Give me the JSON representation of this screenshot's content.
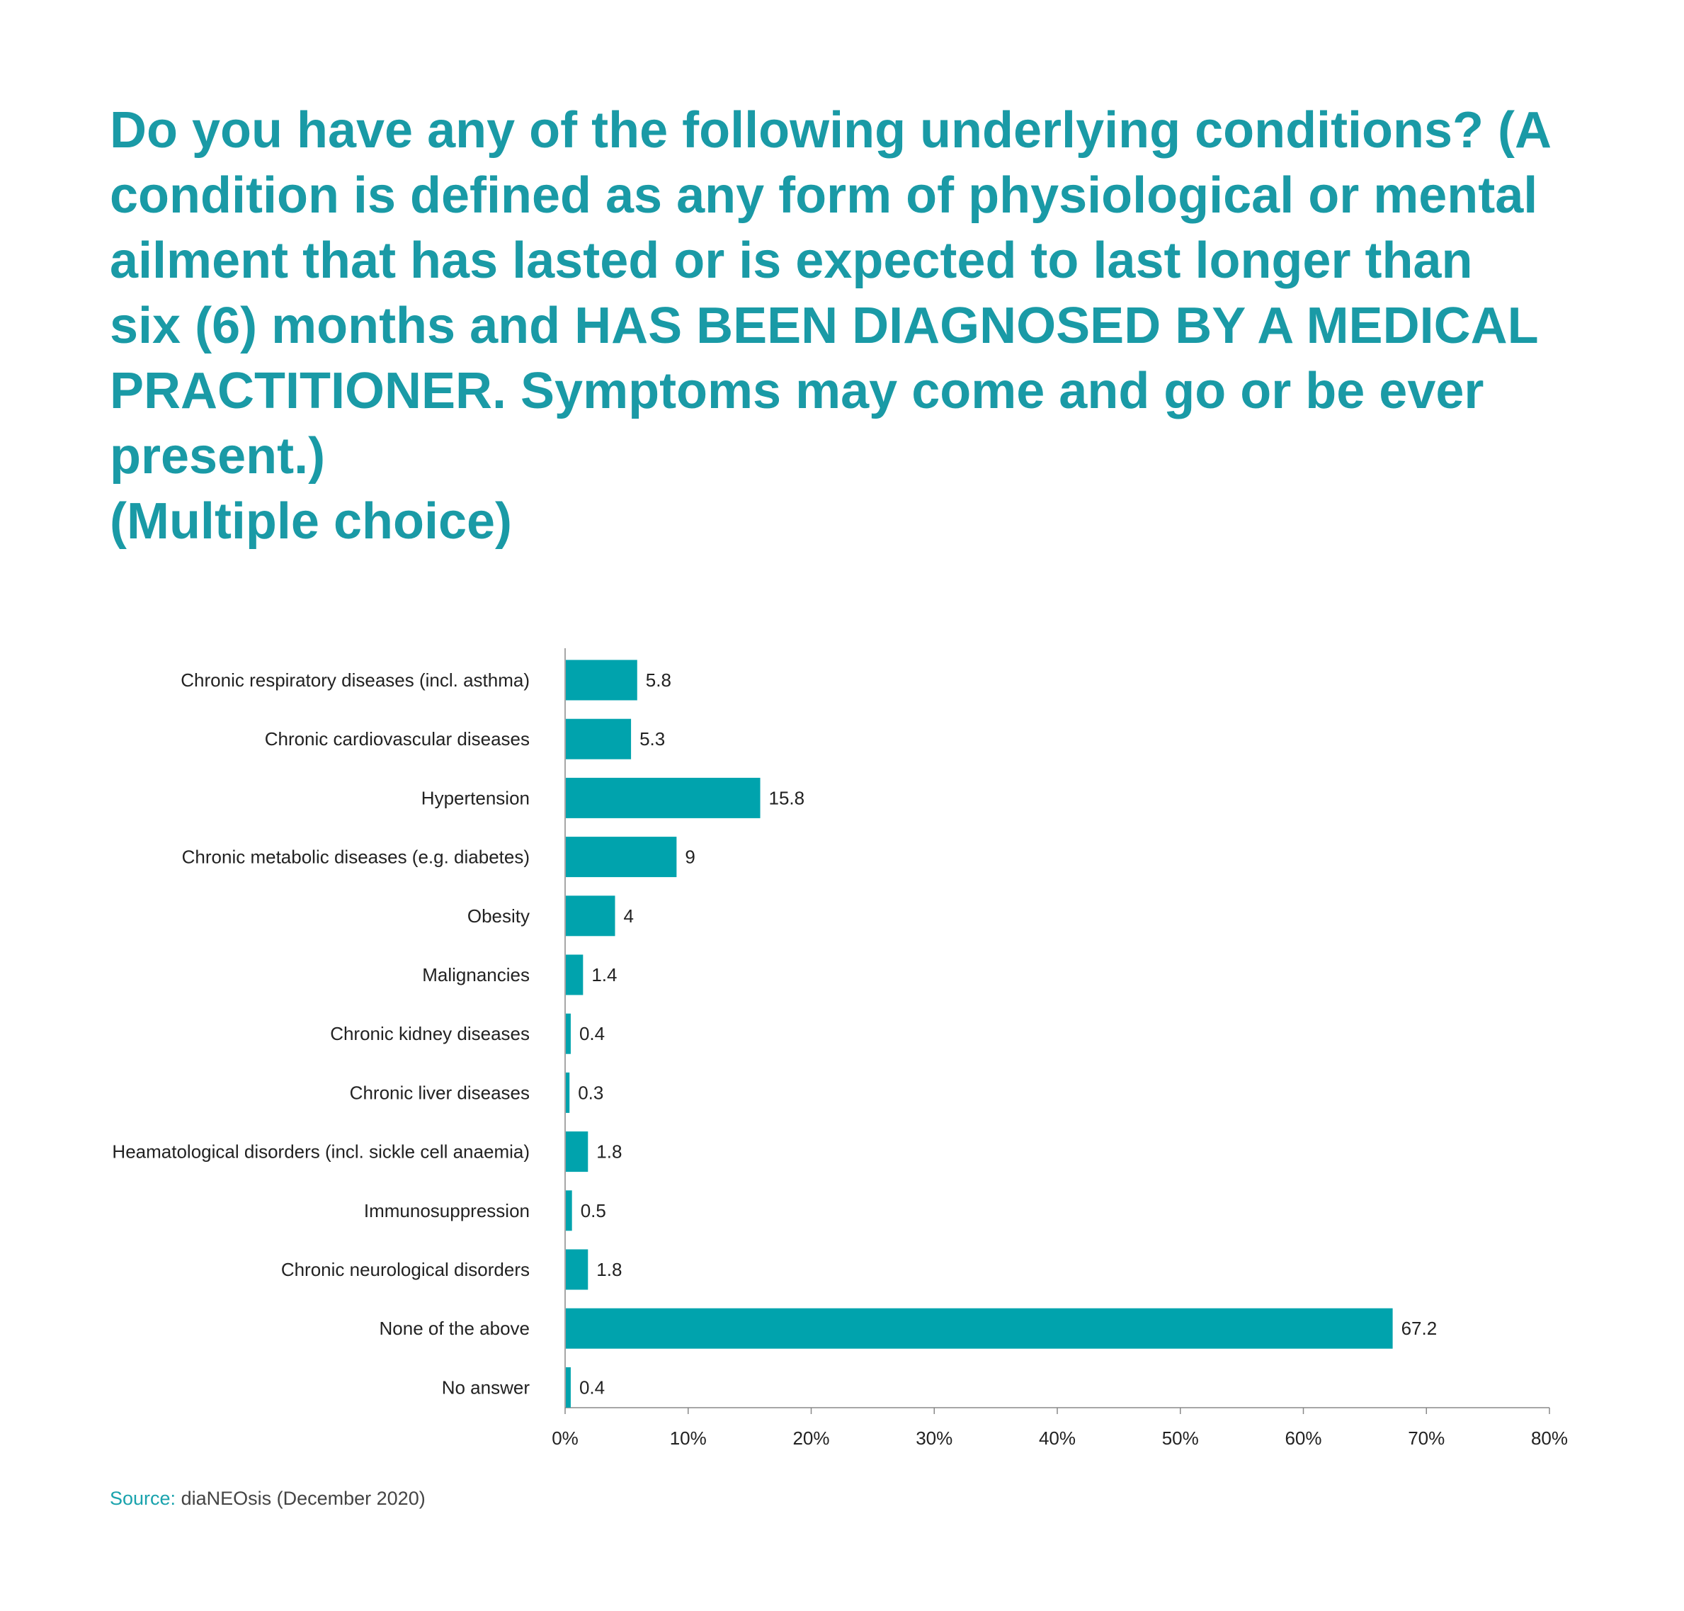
{
  "title_lines": [
    "Do you have any of the following underlying conditions? (A",
    "condition is defined as any form of physiological or mental",
    "ailment that has lasted or is expected to last longer than",
    "six (6) months and HAS BEEN DIAGNOSED BY A MEDICAL",
    "PRACTITIONER. Symptoms may come and go or be ever",
    "present.)",
    "(Multiple choice)"
  ],
  "source": {
    "label": "Source:",
    "text": " diaNEOsis (December 2020)"
  },
  "colors": {
    "accent": "#1a9aa6",
    "bar": "#00a3ad",
    "axis": "#888888",
    "text": "#222222"
  },
  "chart_data": {
    "type": "bar",
    "orientation": "horizontal",
    "categories": [
      "Chronic respiratory diseases (incl. asthma)",
      "Chronic cardiovascular diseases",
      "Hypertension",
      "Chronic metabolic diseases (e.g. diabetes)",
      "Obesity",
      "Malignancies",
      "Chronic kidney diseases",
      "Chronic liver diseases",
      "Heamatological disorders (incl. sickle cell anaemia)",
      "Immunosuppression",
      "Chronic neurological disorders",
      "None of the above",
      "No answer"
    ],
    "values": [
      5.8,
      5.3,
      15.8,
      9,
      4,
      1.4,
      0.4,
      0.3,
      1.8,
      0.5,
      1.8,
      67.2,
      0.4
    ],
    "value_labels": [
      "5.8",
      "5.3",
      "15.8",
      "9",
      "4",
      "1.4",
      "0.4",
      "0.3",
      "1.8",
      "0.5",
      "1.8",
      "67.2",
      "0.4"
    ],
    "xlim": [
      0,
      80
    ],
    "xticks": [
      "0%",
      "10%",
      "20%",
      "30%",
      "40%",
      "50%",
      "60%",
      "70%",
      "80%"
    ],
    "grid": false,
    "legend": "none"
  }
}
